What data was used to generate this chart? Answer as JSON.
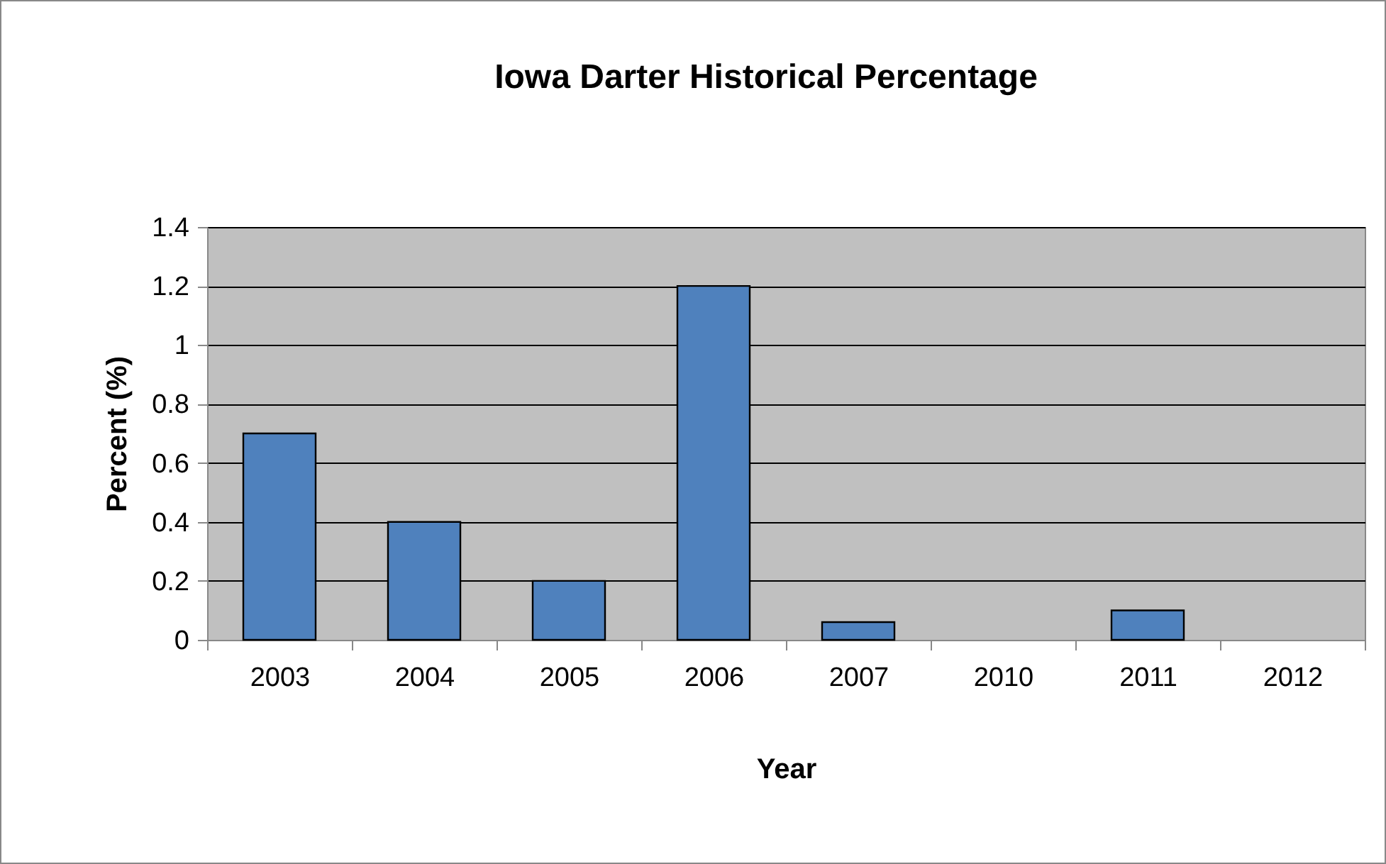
{
  "chart_data": {
    "type": "bar",
    "title": "Iowa Darter Historical Percentage",
    "xlabel": "Year",
    "ylabel": "Percent (%)",
    "categories": [
      "2003",
      "2004",
      "2005",
      "2006",
      "2007",
      "2010",
      "2011",
      "2012"
    ],
    "values": [
      0.7,
      0.4,
      0.2,
      1.2,
      0.06,
      0,
      0.1,
      0
    ],
    "color": "#4f81bd",
    "ylim": [
      0,
      1.4
    ],
    "yticks": [
      0,
      0.2,
      0.4,
      0.6,
      0.8,
      1,
      1.2,
      1.4
    ],
    "grid": "y"
  }
}
